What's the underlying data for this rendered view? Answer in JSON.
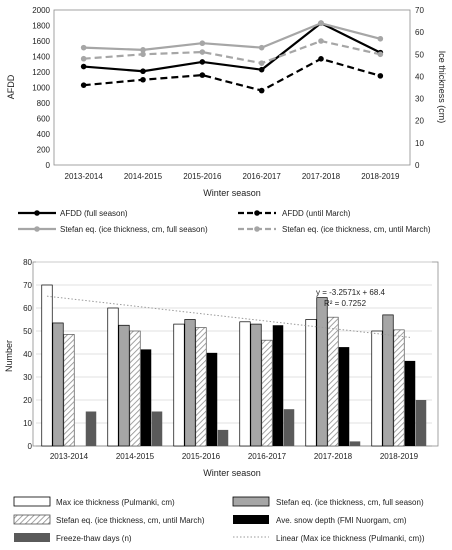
{
  "chart_data": [
    {
      "type": "line",
      "categories": [
        "2013-2014",
        "2014-2015",
        "2015-2016",
        "2016-2017",
        "2017-2018",
        "2018-2019"
      ],
      "xlabel": "Winter season",
      "ylabel": "AFDD",
      "y2label": "Ice thickness (cm)",
      "ylim": [
        0,
        2000
      ],
      "yticks": [
        0,
        200,
        400,
        600,
        800,
        1000,
        1200,
        1400,
        1600,
        1800,
        2000
      ],
      "y2lim": [
        0,
        70
      ],
      "y2ticks": [
        0,
        10,
        20,
        30,
        40,
        50,
        60,
        70
      ],
      "legend_position": "bottom",
      "series": [
        {
          "name": "AFDD (full season)",
          "axis": "left",
          "style": "solid",
          "color": "#000000",
          "values": [
            1270,
            1210,
            1330,
            1230,
            1830,
            1450
          ]
        },
        {
          "name": "AFDD (until March)",
          "axis": "left",
          "style": "dashed",
          "color": "#000000",
          "values": [
            1030,
            1100,
            1160,
            960,
            1370,
            1150
          ]
        },
        {
          "name": "Stefan eq. (ice thickness, cm, full season)",
          "axis": "right",
          "style": "solid",
          "color": "#a6a6a6",
          "values": [
            53,
            52,
            55,
            53,
            64,
            57
          ]
        },
        {
          "name": "Stefan eq. (ice thickness, cm, until March)",
          "axis": "right",
          "style": "dashed",
          "color": "#a6a6a6",
          "values": [
            48,
            50,
            51,
            46,
            56,
            50
          ]
        }
      ]
    },
    {
      "type": "bar",
      "categories": [
        "2013-2014",
        "2014-2015",
        "2015-2016",
        "2016-2017",
        "2017-2018",
        "2018-2019"
      ],
      "xlabel": "Winter season",
      "ylabel": "Number",
      "ylim": [
        0,
        80
      ],
      "yticks": [
        0,
        10,
        20,
        30,
        40,
        50,
        60,
        70,
        80
      ],
      "legend_position": "bottom",
      "series": [
        {
          "name": "Max ice thickness (Pulmanki, cm)",
          "fill": "white",
          "values": [
            70,
            60,
            53,
            54,
            55,
            50
          ]
        },
        {
          "name": "Stefan eq. (ice thickness, cm, full season)",
          "fill": "gray",
          "values": [
            53.5,
            52.5,
            55,
            53,
            64.5,
            57
          ]
        },
        {
          "name": "Stefan eq. (ice thickness, cm, until March)",
          "fill": "hatch",
          "values": [
            48.5,
            50,
            51.5,
            46,
            56,
            50.5
          ]
        },
        {
          "name": "Ave. snow depth (FMI Nuorgam, cm)",
          "fill": "black",
          "values": [
            0,
            42,
            40.5,
            52.5,
            43,
            37
          ]
        },
        {
          "name": "Freeze-thaw days (n)",
          "fill": "darkgray",
          "values": [
            15,
            15,
            7,
            16,
            2,
            20
          ]
        }
      ],
      "trendline": {
        "name": "Linear (Max ice thickness (Pulmanki, cm))",
        "equation": "y = -3.2571x + 68.4",
        "r2": "R² = 0.7252",
        "slope": -3.2571,
        "intercept": 68.4
      }
    }
  ]
}
